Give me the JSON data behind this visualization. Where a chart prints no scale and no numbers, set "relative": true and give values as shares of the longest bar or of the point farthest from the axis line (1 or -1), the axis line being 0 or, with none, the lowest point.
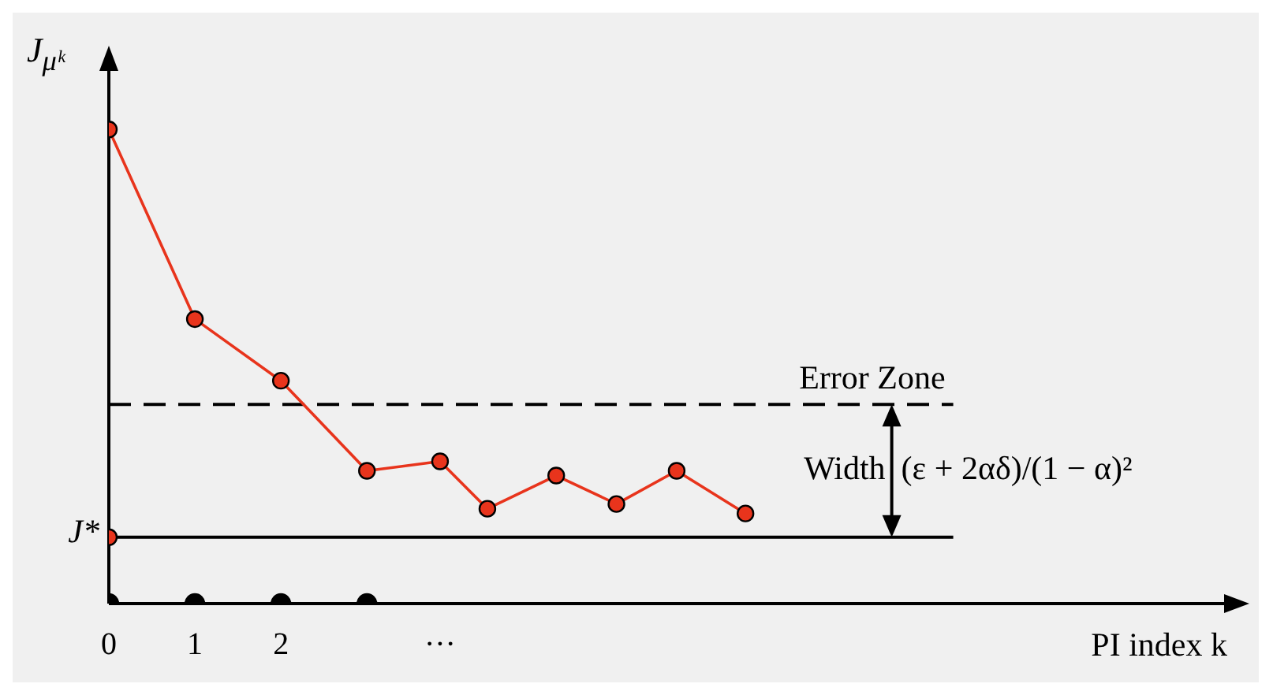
{
  "chart_data": {
    "type": "line",
    "relative": true,
    "xlabel": "PI index k",
    "ylabel": "J$_{μᵏ}$",
    "xlim": [
      0,
      13
    ],
    "xticks": [
      0,
      1,
      2,
      {
        "value": 3.85,
        "label": "···"
      }
    ],
    "series": [
      {
        "color": "#e8341c",
        "marker": "circle",
        "x": [
          0,
          1,
          2,
          3,
          3.85,
          4.4,
          5.2,
          5.9,
          6.6,
          7.4
        ],
        "values": [
          1,
          0.6,
          0.47,
          0.28,
          0.3,
          0.2,
          0.27,
          0.21,
          0.28,
          0.19
        ]
      },
      {
        "type": "scatter",
        "color": "#e8341c",
        "x": [
          0
        ],
        "values": [
          0.14
        ]
      },
      {
        "type": "scatter",
        "color": "#000000",
        "x": [
          0,
          1,
          2,
          3
        ],
        "values": [
          0,
          0,
          0,
          0
        ]
      }
    ],
    "ref_lines": [
      {
        "axis": "y",
        "value": 0.14,
        "color": "#000000",
        "line_style": "solid"
      },
      {
        "axis": "y",
        "value": 0.42,
        "label": "Error Zone",
        "color": "#000000",
        "line_style": "dashed"
      }
    ],
    "annotations": [
      {
        "text": "J*",
        "x": 0,
        "y": 0.14
      },
      "Width",
      "(ε + 2αδ)/(1 − α)²"
    ]
  }
}
